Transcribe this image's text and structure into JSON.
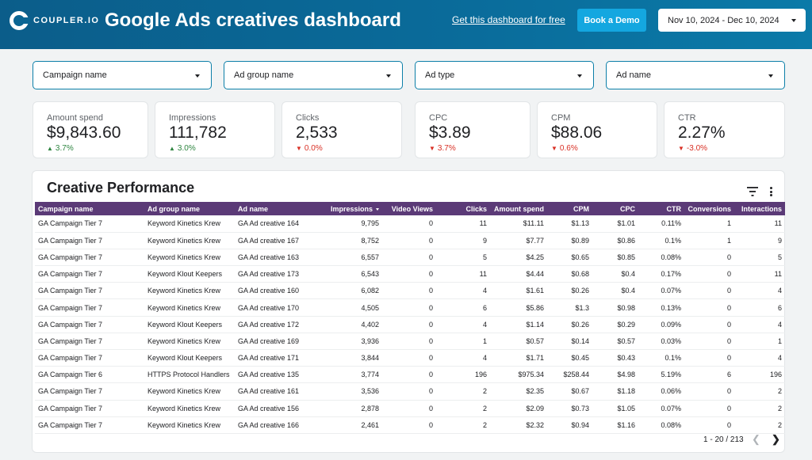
{
  "header": {
    "logo_text": "COUPLER.IO",
    "title": "Google Ads creatives dashboard",
    "get_link": "Get this dashboard for free",
    "demo_button": "Book a Demo",
    "date_range": "Nov 10, 2024 - Dec 10, 2024",
    "background_color": "#0b6593",
    "button_color": "#14a7e0"
  },
  "filters": [
    {
      "label": "Campaign name"
    },
    {
      "label": "Ad group name"
    },
    {
      "label": "Ad type"
    },
    {
      "label": "Ad name"
    }
  ],
  "kpis": [
    {
      "label": "Amount spend",
      "value": "$9,843.60",
      "delta": "3.7%",
      "direction": "up"
    },
    {
      "label": "Impressions",
      "value": "111,782",
      "delta": "3.0%",
      "direction": "up"
    },
    {
      "label": "Clicks",
      "value": "2,533",
      "delta": "0.0%",
      "direction": "down"
    },
    {
      "label": "CPC",
      "value": "$3.89",
      "delta": "3.7%",
      "direction": "down"
    },
    {
      "label": "CPM",
      "value": "$88.06",
      "delta": "0.6%",
      "direction": "down"
    },
    {
      "label": "CTR",
      "value": "2.27%",
      "delta": "-3.0%",
      "direction": "down"
    }
  ],
  "table": {
    "title": "Creative Performance",
    "header_color": "#5b3a77",
    "columns": [
      "Campaign name",
      "Ad group name",
      "Ad name",
      "Impressions",
      "Video Views",
      "Clicks",
      "Amount spend",
      "CPM",
      "CPC",
      "CTR",
      "Conversions",
      "Interactions"
    ],
    "rows": [
      [
        "GA Campaign Tier 7",
        "Keyword Kinetics Krew",
        "GA Ad creative 164",
        "9,795",
        "0",
        "11",
        "$11.11",
        "$1.13",
        "$1.01",
        "0.11%",
        "1",
        "11"
      ],
      [
        "GA Campaign Tier 7",
        "Keyword Kinetics Krew",
        "GA Ad creative 167",
        "8,752",
        "0",
        "9",
        "$7.77",
        "$0.89",
        "$0.86",
        "0.1%",
        "1",
        "9"
      ],
      [
        "GA Campaign Tier 7",
        "Keyword Kinetics Krew",
        "GA Ad creative 163",
        "6,557",
        "0",
        "5",
        "$4.25",
        "$0.65",
        "$0.85",
        "0.08%",
        "0",
        "5"
      ],
      [
        "GA Campaign Tier 7",
        "Keyword Klout Keepers",
        "GA Ad creative 173",
        "6,543",
        "0",
        "11",
        "$4.44",
        "$0.68",
        "$0.4",
        "0.17%",
        "0",
        "11"
      ],
      [
        "GA Campaign Tier 7",
        "Keyword Kinetics Krew",
        "GA Ad creative 160",
        "6,082",
        "0",
        "4",
        "$1.61",
        "$0.26",
        "$0.4",
        "0.07%",
        "0",
        "4"
      ],
      [
        "GA Campaign Tier 7",
        "Keyword Kinetics Krew",
        "GA Ad creative 170",
        "4,505",
        "0",
        "6",
        "$5.86",
        "$1.3",
        "$0.98",
        "0.13%",
        "0",
        "6"
      ],
      [
        "GA Campaign Tier 7",
        "Keyword Klout Keepers",
        "GA Ad creative 172",
        "4,402",
        "0",
        "4",
        "$1.14",
        "$0.26",
        "$0.29",
        "0.09%",
        "0",
        "4"
      ],
      [
        "GA Campaign Tier 7",
        "Keyword Kinetics Krew",
        "GA Ad creative 169",
        "3,936",
        "0",
        "1",
        "$0.57",
        "$0.14",
        "$0.57",
        "0.03%",
        "0",
        "1"
      ],
      [
        "GA Campaign Tier 7",
        "Keyword Klout Keepers",
        "GA Ad creative 171",
        "3,844",
        "0",
        "4",
        "$1.71",
        "$0.45",
        "$0.43",
        "0.1%",
        "0",
        "4"
      ],
      [
        "GA Campaign Tier 6",
        "HTTPS Protocol Handlers",
        "GA Ad creative 135",
        "3,774",
        "0",
        "196",
        "$975.34",
        "$258.44",
        "$4.98",
        "5.19%",
        "6",
        "196"
      ],
      [
        "GA Campaign Tier 7",
        "Keyword Kinetics Krew",
        "GA Ad creative 161",
        "3,536",
        "0",
        "2",
        "$2.35",
        "$0.67",
        "$1.18",
        "0.06%",
        "0",
        "2"
      ],
      [
        "GA Campaign Tier 7",
        "Keyword Kinetics Krew",
        "GA Ad creative 156",
        "2,878",
        "0",
        "2",
        "$2.09",
        "$0.73",
        "$1.05",
        "0.07%",
        "0",
        "2"
      ],
      [
        "GA Campaign Tier 7",
        "Keyword Kinetics Krew",
        "GA Ad creative 166",
        "2,461",
        "0",
        "2",
        "$2.32",
        "$0.94",
        "$1.16",
        "0.08%",
        "0",
        "2"
      ]
    ],
    "pagination": "1 - 20 / 213",
    "prev_icon": "chevron-left-icon",
    "next_icon": "chevron-right-icon"
  }
}
